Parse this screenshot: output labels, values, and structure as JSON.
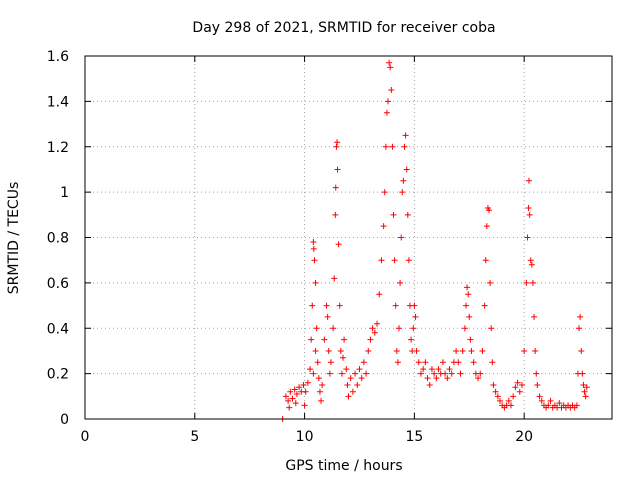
{
  "chart_data": {
    "type": "scatter",
    "title": "Day 298 of 2021, SRMTID for receiver coba",
    "xlabel": "GPS time / hours",
    "ylabel": "SRMTID / TECUs",
    "xlim": [
      0,
      24
    ],
    "ylim": [
      0,
      1.6
    ],
    "xticks": [
      0,
      5,
      10,
      15,
      20
    ],
    "xtick_labels": [
      "0",
      "5",
      "10",
      "15",
      "20"
    ],
    "yticks": [
      0,
      0.2,
      0.4,
      0.6,
      0.8,
      1.0,
      1.2,
      1.4,
      1.6
    ],
    "ytick_labels": [
      "0",
      "0.2",
      "0.4",
      "0.6",
      "0.8",
      "1",
      "1.2",
      "1.4",
      "1.6"
    ],
    "grid": true,
    "marker": "+",
    "color": "#ff0000",
    "series": [
      {
        "name": "SRMTID",
        "points": [
          [
            9.0,
            0.0
          ],
          [
            9.15,
            0.1
          ],
          [
            9.25,
            0.08
          ],
          [
            9.35,
            0.12
          ],
          [
            9.45,
            0.09
          ],
          [
            9.55,
            0.13
          ],
          [
            9.65,
            0.11
          ],
          [
            9.75,
            0.14
          ],
          [
            9.85,
            0.12
          ],
          [
            9.95,
            0.15
          ],
          [
            10.05,
            0.12
          ],
          [
            10.15,
            0.16
          ],
          [
            10.0,
            0.06
          ],
          [
            9.3,
            0.05
          ],
          [
            9.6,
            0.07
          ],
          [
            10.25,
            0.22
          ],
          [
            10.3,
            0.35
          ],
          [
            10.35,
            0.5
          ],
          [
            10.4,
            0.78
          ],
          [
            10.42,
            0.75
          ],
          [
            10.45,
            0.7
          ],
          [
            10.5,
            0.6
          ],
          [
            10.55,
            0.4
          ],
          [
            10.6,
            0.25
          ],
          [
            10.65,
            0.18
          ],
          [
            10.7,
            0.12
          ],
          [
            10.75,
            0.08
          ],
          [
            10.5,
            0.3
          ],
          [
            10.4,
            0.2
          ],
          [
            10.8,
            0.15
          ],
          [
            10.9,
            0.35
          ],
          [
            11.0,
            0.5
          ],
          [
            11.05,
            0.45
          ],
          [
            11.1,
            0.3
          ],
          [
            11.15,
            0.2
          ],
          [
            11.2,
            0.25
          ],
          [
            11.3,
            0.4
          ],
          [
            11.35,
            0.62
          ],
          [
            11.4,
            0.9
          ],
          [
            11.42,
            1.02
          ],
          [
            11.45,
            1.2
          ],
          [
            11.48,
            1.22
          ],
          [
            11.5,
            1.1
          ],
          [
            11.55,
            0.77
          ],
          [
            11.6,
            0.5
          ],
          [
            11.65,
            0.3
          ],
          [
            11.7,
            0.2
          ],
          [
            11.75,
            0.27
          ],
          [
            11.8,
            0.35
          ],
          [
            11.9,
            0.22
          ],
          [
            11.95,
            0.15
          ],
          [
            12.0,
            0.1
          ],
          [
            12.1,
            0.18
          ],
          [
            12.2,
            0.12
          ],
          [
            12.3,
            0.2
          ],
          [
            12.4,
            0.15
          ],
          [
            12.5,
            0.22
          ],
          [
            12.6,
            0.18
          ],
          [
            12.7,
            0.25
          ],
          [
            12.8,
            0.2
          ],
          [
            12.9,
            0.3
          ],
          [
            13.0,
            0.35
          ],
          [
            13.1,
            0.4
          ],
          [
            13.2,
            0.38
          ],
          [
            13.3,
            0.42
          ],
          [
            13.4,
            0.55
          ],
          [
            13.5,
            0.7
          ],
          [
            13.6,
            0.85
          ],
          [
            13.65,
            1.0
          ],
          [
            13.7,
            1.2
          ],
          [
            13.75,
            1.35
          ],
          [
            13.8,
            1.4
          ],
          [
            13.85,
            1.57
          ],
          [
            13.9,
            1.55
          ],
          [
            13.95,
            1.45
          ],
          [
            14.0,
            1.2
          ],
          [
            14.05,
            0.9
          ],
          [
            14.1,
            0.7
          ],
          [
            14.15,
            0.5
          ],
          [
            14.2,
            0.3
          ],
          [
            14.25,
            0.25
          ],
          [
            14.3,
            0.4
          ],
          [
            14.35,
            0.6
          ],
          [
            14.4,
            0.8
          ],
          [
            14.45,
            1.0
          ],
          [
            14.5,
            1.05
          ],
          [
            14.55,
            1.2
          ],
          [
            14.6,
            1.25
          ],
          [
            14.65,
            1.1
          ],
          [
            14.7,
            0.9
          ],
          [
            14.75,
            0.7
          ],
          [
            14.8,
            0.5
          ],
          [
            14.85,
            0.35
          ],
          [
            14.9,
            0.3
          ],
          [
            14.95,
            0.4
          ],
          [
            15.0,
            0.5
          ],
          [
            15.05,
            0.45
          ],
          [
            15.1,
            0.3
          ],
          [
            15.2,
            0.25
          ],
          [
            15.3,
            0.2
          ],
          [
            15.4,
            0.22
          ],
          [
            15.5,
            0.25
          ],
          [
            15.6,
            0.18
          ],
          [
            15.7,
            0.15
          ],
          [
            15.8,
            0.22
          ],
          [
            15.9,
            0.2
          ],
          [
            16.0,
            0.18
          ],
          [
            16.1,
            0.22
          ],
          [
            16.2,
            0.2
          ],
          [
            16.3,
            0.25
          ],
          [
            16.4,
            0.2
          ],
          [
            16.5,
            0.18
          ],
          [
            16.6,
            0.22
          ],
          [
            16.7,
            0.2
          ],
          [
            16.8,
            0.25
          ],
          [
            16.9,
            0.3
          ],
          [
            17.0,
            0.25
          ],
          [
            17.1,
            0.2
          ],
          [
            17.2,
            0.3
          ],
          [
            17.3,
            0.4
          ],
          [
            17.35,
            0.5
          ],
          [
            17.4,
            0.58
          ],
          [
            17.45,
            0.55
          ],
          [
            17.5,
            0.45
          ],
          [
            17.55,
            0.35
          ],
          [
            17.6,
            0.3
          ],
          [
            17.7,
            0.25
          ],
          [
            17.8,
            0.2
          ],
          [
            17.9,
            0.18
          ],
          [
            18.0,
            0.2
          ],
          [
            18.1,
            0.3
          ],
          [
            18.2,
            0.5
          ],
          [
            18.25,
            0.7
          ],
          [
            18.3,
            0.85
          ],
          [
            18.35,
            0.93
          ],
          [
            18.4,
            0.92
          ],
          [
            18.45,
            0.6
          ],
          [
            18.5,
            0.4
          ],
          [
            18.55,
            0.25
          ],
          [
            18.6,
            0.15
          ],
          [
            18.7,
            0.12
          ],
          [
            18.8,
            0.1
          ],
          [
            18.9,
            0.08
          ],
          [
            19.0,
            0.06
          ],
          [
            19.1,
            0.05
          ],
          [
            19.2,
            0.06
          ],
          [
            19.3,
            0.08
          ],
          [
            19.4,
            0.06
          ],
          [
            19.5,
            0.1
          ],
          [
            19.6,
            0.14
          ],
          [
            19.7,
            0.16
          ],
          [
            19.8,
            0.12
          ],
          [
            19.9,
            0.15
          ],
          [
            20.0,
            0.3
          ],
          [
            20.1,
            0.6
          ],
          [
            20.15,
            0.8
          ],
          [
            20.2,
            0.93
          ],
          [
            20.22,
            1.05
          ],
          [
            20.25,
            0.9
          ],
          [
            20.3,
            0.7
          ],
          [
            20.35,
            0.68
          ],
          [
            20.4,
            0.6
          ],
          [
            20.45,
            0.45
          ],
          [
            20.5,
            0.3
          ],
          [
            20.55,
            0.2
          ],
          [
            20.6,
            0.15
          ],
          [
            20.7,
            0.1
          ],
          [
            20.8,
            0.08
          ],
          [
            20.9,
            0.06
          ],
          [
            21.0,
            0.05
          ],
          [
            21.1,
            0.06
          ],
          [
            21.2,
            0.08
          ],
          [
            21.3,
            0.05
          ],
          [
            21.4,
            0.06
          ],
          [
            21.5,
            0.05
          ],
          [
            21.6,
            0.07
          ],
          [
            21.7,
            0.05
          ],
          [
            21.8,
            0.06
          ],
          [
            21.9,
            0.05
          ],
          [
            22.0,
            0.06
          ],
          [
            22.1,
            0.05
          ],
          [
            22.2,
            0.06
          ],
          [
            22.3,
            0.05
          ],
          [
            22.4,
            0.06
          ],
          [
            22.45,
            0.2
          ],
          [
            22.5,
            0.4
          ],
          [
            22.55,
            0.45
          ],
          [
            22.6,
            0.3
          ],
          [
            22.65,
            0.2
          ],
          [
            22.7,
            0.15
          ],
          [
            22.75,
            0.12
          ],
          [
            22.8,
            0.1
          ],
          [
            22.85,
            0.14
          ]
        ]
      }
    ]
  }
}
